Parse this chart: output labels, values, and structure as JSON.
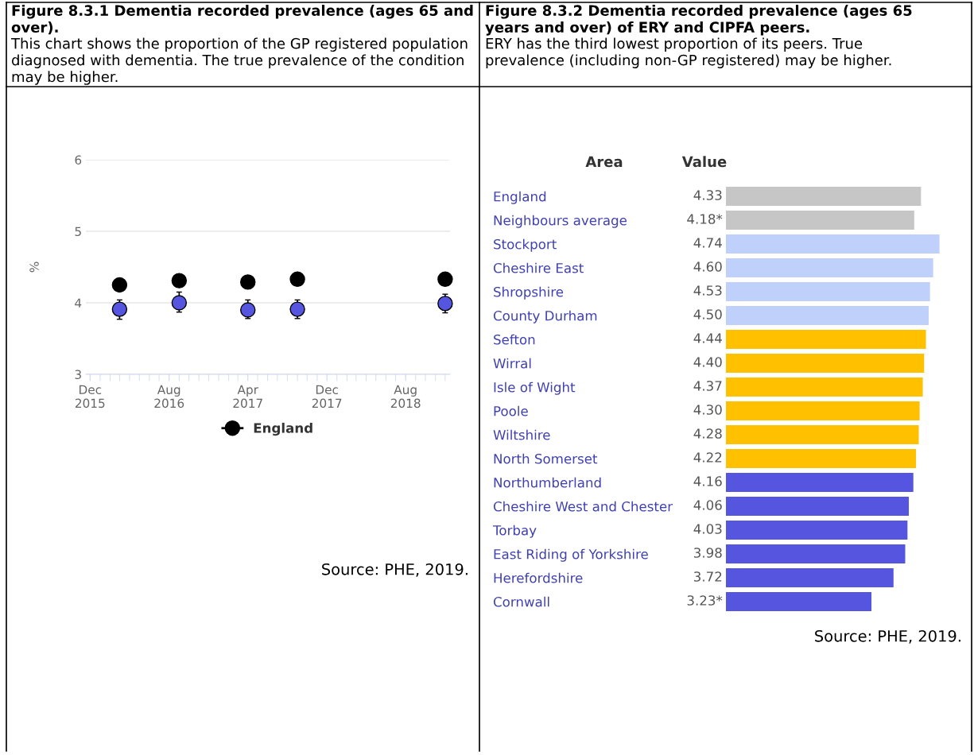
{
  "chart_data": [
    {
      "type": "scatter",
      "title": "Figure 8.3.1 Dementia recorded prevalence (ages 65 and over).",
      "subtitle": "This chart shows the proportion of the GP registered population diagnosed with dementia. The true prevalence of the condition may be higher.",
      "ylabel": "%",
      "x": [
        "2016-03",
        "2016-09",
        "2017-04",
        "2017-09",
        "2018-12"
      ],
      "series": [
        {
          "name": "England",
          "color": "#000000",
          "values": [
            4.25,
            4.31,
            4.29,
            4.33,
            4.33
          ]
        },
        {
          "color": "#5555e0",
          "values": [
            3.91,
            4.0,
            3.9,
            3.91,
            3.99
          ],
          "errors": [
            [
              3.77,
              4.04
            ],
            [
              3.87,
              4.15
            ],
            [
              3.78,
              4.04
            ],
            [
              3.78,
              4.04
            ],
            [
              3.86,
              4.12
            ]
          ]
        }
      ],
      "xlim": [
        "2015-11-18",
        "2018-12-16"
      ],
      "xticks": [
        {
          "value": "2015-12",
          "label": "Dec\n2015"
        },
        {
          "value": "2016-08",
          "label": "Aug\n2016"
        },
        {
          "value": "2017-04",
          "label": "Apr\n2017"
        },
        {
          "value": "2017-12",
          "label": "Dec\n2017"
        },
        {
          "value": "2018-08",
          "label": "Aug\n2018"
        }
      ],
      "ylim": [
        3,
        6
      ],
      "yticks": [
        3,
        4,
        5,
        6
      ],
      "grid": "y",
      "legend": "bottom",
      "marker": "circle",
      "annotations": [
        "Source: PHE, 2019."
      ]
    },
    {
      "type": "bar",
      "orientation": "horizontal",
      "title": "Figure 8.3.2 Dementia recorded prevalence (ages 65 years and over) of ERY and CIPFA peers.",
      "subtitle": "ERY has the third lowest proportion of its peers. True prevalence (including non-GP registered) may be higher.",
      "categories": [
        "England",
        "Neighbours average",
        "Stockport",
        "Cheshire East",
        "Shropshire",
        "County Durham",
        "Sefton",
        "Wirral",
        "Isle of Wight",
        "Poole",
        "Wiltshire",
        "North Somerset",
        "Northumberland",
        "Cheshire West and Chester",
        "Torbay",
        "East Riding of Yorkshire",
        "Herefordshire",
        "Cornwall"
      ],
      "values": [
        4.33,
        4.18,
        4.74,
        4.6,
        4.53,
        4.5,
        4.44,
        4.4,
        4.37,
        4.3,
        4.28,
        4.22,
        4.16,
        4.06,
        4.03,
        3.98,
        3.72,
        3.23
      ],
      "value_labels": [
        "4.33",
        "4.18*",
        "4.74",
        "4.60",
        "4.53",
        "4.50",
        "4.44",
        "4.40",
        "4.37",
        "4.30",
        "4.28",
        "4.22",
        "4.16",
        "4.06",
        "4.03",
        "3.98",
        "3.72",
        "3.23*"
      ],
      "colors": [
        "#c6c6c6",
        "#c6c6c6",
        "#bfd1fb",
        "#bfd1fb",
        "#bfd1fb",
        "#bfd1fb",
        "#ffc000",
        "#ffc000",
        "#ffc000",
        "#ffc000",
        "#ffc000",
        "#ffc000",
        "#5555e0",
        "#5555e0",
        "#5555e0",
        "#5555e0",
        "#5555e0",
        "#5555e0"
      ],
      "tick_labels": "y",
      "annotations": [
        "Area",
        "Value",
        "Source: PHE, 2019."
      ]
    }
  ]
}
